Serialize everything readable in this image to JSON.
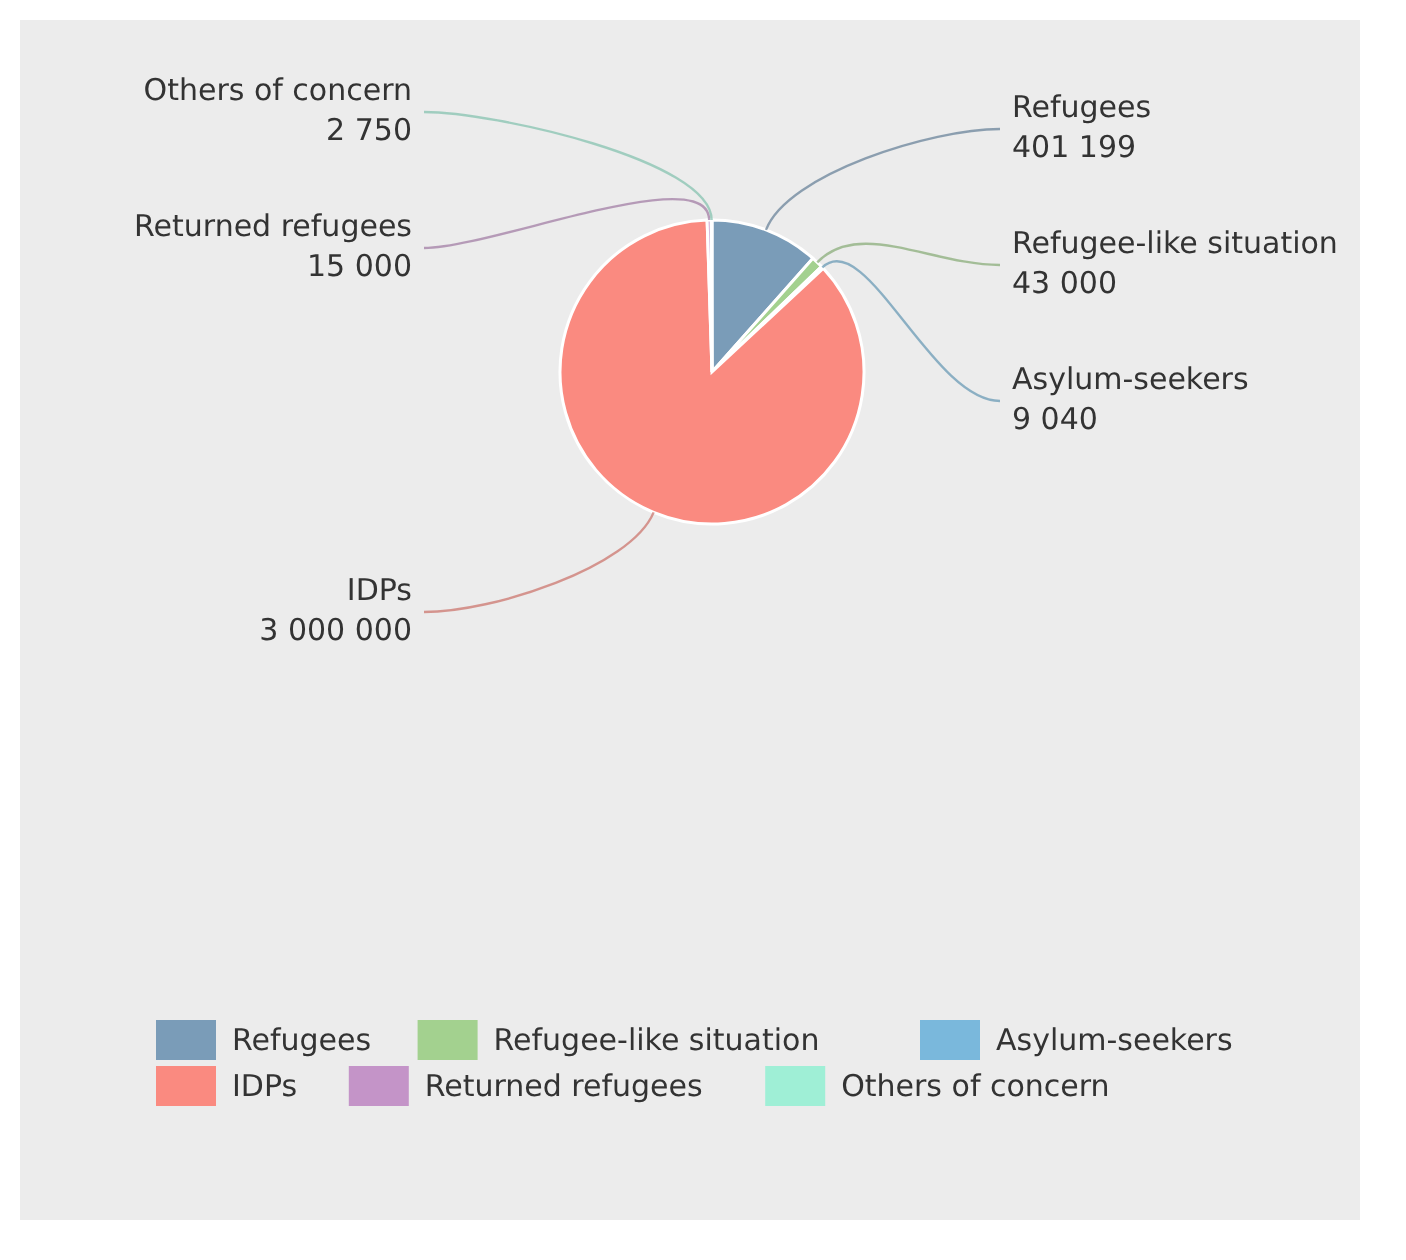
{
  "chart_data": {
    "type": "pie",
    "categories": [
      "Refugees",
      "Refugee-like situation",
      "Asylum-seekers",
      "IDPs",
      "Returned refugees",
      "Others of concern"
    ],
    "values": [
      401199,
      43000,
      9040,
      3000000,
      15000,
      2750
    ],
    "colors": [
      "#7a9cb8",
      "#a3d18f",
      "#7ab8dc",
      "#fa8a80",
      "#c494c8",
      "#9fefd6"
    ],
    "data_labels": true,
    "legend": "bottom"
  }
}
